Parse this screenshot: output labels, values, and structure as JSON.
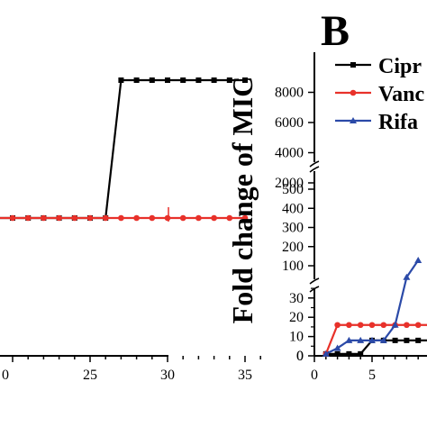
{
  "panel_b_label": "B",
  "colors": {
    "black": "#000000",
    "red": "#e8312a",
    "blue": "#2b4aa8"
  },
  "chart_data": [
    {
      "type": "line",
      "panel": "A (cropped)",
      "xlim": [
        17,
        37
      ],
      "x_ticks": [
        25,
        30,
        35
      ],
      "series": [
        {
          "color": "#000000",
          "marker": "square",
          "x": [
            17,
            18,
            19,
            20,
            21,
            22,
            23,
            24,
            25,
            26,
            27,
            28,
            29,
            30,
            31,
            32,
            33,
            34,
            35
          ],
          "y": [
            1,
            1,
            1,
            1,
            1,
            1,
            1,
            1,
            1,
            1,
            6800,
            6800,
            6800,
            6800,
            6800,
            6800,
            6800,
            6800,
            6800
          ]
        },
        {
          "color": "#e8312a",
          "marker": "circle",
          "x": [
            17,
            18,
            19,
            20,
            21,
            22,
            23,
            24,
            25,
            26,
            27,
            28,
            29,
            30,
            31,
            32,
            33,
            34,
            35
          ],
          "y": [
            1,
            1,
            1,
            1,
            1,
            1,
            1,
            1,
            1,
            1,
            1,
            1,
            1,
            1,
            1,
            1,
            1,
            1,
            1
          ]
        }
      ]
    },
    {
      "type": "line",
      "panel": "B",
      "ylabel": "Fold change of MIC",
      "xlim": [
        0,
        12
      ],
      "x_ticks": [
        0,
        5
      ],
      "y_segments": [
        {
          "range": [
            0,
            35
          ],
          "ticks": [
            0,
            10,
            20,
            30
          ]
        },
        {
          "range": [
            80,
            510
          ],
          "ticks": [
            100,
            200,
            300,
            400,
            500
          ]
        },
        {
          "range": [
            1000,
            8600
          ],
          "ticks": [
            2000,
            4000,
            6000,
            8000
          ]
        }
      ],
      "legend": {
        "placement": "top-right",
        "entries": [
          "Cipr",
          "Vanc",
          "Rifa"
        ]
      },
      "series": [
        {
          "name": "Cipr",
          "color": "#000000",
          "marker": "square",
          "x": [
            1,
            2,
            3,
            4,
            5,
            6,
            7,
            8,
            9,
            10,
            11,
            12
          ],
          "y": [
            1,
            1,
            1,
            1,
            8,
            8,
            8,
            8,
            8,
            8,
            8,
            8
          ]
        },
        {
          "name": "Vanc",
          "color": "#e8312a",
          "marker": "circle",
          "x": [
            1,
            2,
            3,
            4,
            5,
            6,
            7,
            8,
            9,
            10,
            11,
            12
          ],
          "y": [
            1,
            16,
            16,
            16,
            16,
            16,
            16,
            16,
            16,
            16,
            16,
            16
          ]
        },
        {
          "name": "Rifa",
          "color": "#2b4aa8",
          "marker": "triangle",
          "x": [
            1,
            2,
            3,
            4,
            5,
            6,
            7,
            8,
            9
          ],
          "y": [
            1,
            4,
            8,
            8,
            8,
            8,
            16,
            40,
            128
          ]
        }
      ]
    }
  ]
}
